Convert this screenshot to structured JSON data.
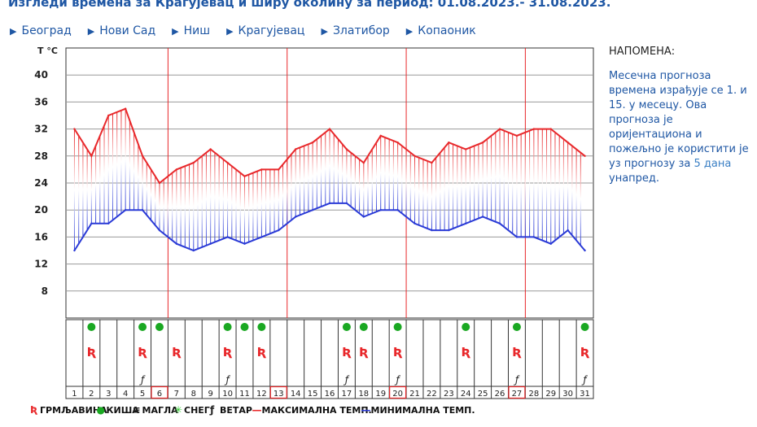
{
  "header": {
    "title": "Изгледи времена за Крагујевац и ширу околину за период: 01.08.2023.- 31.08.2023."
  },
  "cities": [
    "Београд",
    "Нови Сад",
    "Ниш",
    "Крагујевац",
    "Златибор",
    "Копаоник"
  ],
  "note": {
    "title": "НАПОМЕНА:",
    "body": "Месечна прогноза времена израђује се 1. и 15. у месецу. Ова прогноза је оријентациона и пожељно је користити је уз прогнозу за",
    "link": "5 дана",
    "tail": "унапред."
  },
  "chart_data": {
    "type": "line",
    "ylabel": "T °C",
    "ylim": [
      4,
      44
    ],
    "yticks": [
      8,
      12,
      16,
      20,
      24,
      28,
      32,
      36,
      40
    ],
    "x": [
      1,
      2,
      3,
      4,
      5,
      6,
      7,
      8,
      9,
      10,
      11,
      12,
      13,
      14,
      15,
      16,
      17,
      18,
      19,
      20,
      21,
      22,
      23,
      24,
      25,
      26,
      27,
      28,
      29,
      30,
      31
    ],
    "series": [
      {
        "name": "МАКСИМАЛНА ТЕМП.",
        "color": "#e8282b",
        "values": [
          32,
          28,
          34,
          35,
          28,
          24,
          26,
          27,
          29,
          27,
          25,
          26,
          26,
          29,
          30,
          32,
          29,
          27,
          31,
          30,
          28,
          27,
          30,
          29,
          30,
          32,
          31,
          32,
          32,
          30,
          28
        ]
      },
      {
        "name": "МИНИМАЛНА ТЕМП.",
        "color": "#2a3ad6",
        "values": [
          14,
          18,
          18,
          20,
          20,
          17,
          15,
          14,
          15,
          16,
          15,
          16,
          17,
          19,
          20,
          21,
          21,
          19,
          20,
          20,
          18,
          17,
          17,
          18,
          19,
          18,
          16,
          16,
          15,
          17,
          14
        ]
      }
    ],
    "weekend_days": [
      6,
      13,
      20,
      27
    ],
    "rain_days": [
      2,
      5,
      6,
      10,
      11,
      12,
      17,
      18,
      20,
      24,
      27,
      31
    ],
    "storm_days": [
      2,
      5,
      7,
      10,
      12,
      17,
      18,
      20,
      24,
      27,
      31
    ],
    "wind_days": [
      5,
      10,
      17,
      20,
      27,
      31
    ],
    "legend": [
      {
        "key": "storm",
        "label": "ГРМЉАВИНА",
        "color": "#e8282b"
      },
      {
        "key": "rain",
        "label": "КИША",
        "color": "#1aa822"
      },
      {
        "key": "fog",
        "label": "МАГЛА",
        "color": "#222222"
      },
      {
        "key": "snow",
        "label": "СНЕГ",
        "color": "#33cc33"
      },
      {
        "key": "wind",
        "label": "ВЕТАР",
        "color": "#222222"
      },
      {
        "key": "max",
        "label": "МАКСИМАЛНА ТЕМП.",
        "color": "#e8282b"
      },
      {
        "key": "min",
        "label": "МИНИМАЛНА ТЕМП.",
        "color": "#2a3ad6"
      }
    ]
  }
}
